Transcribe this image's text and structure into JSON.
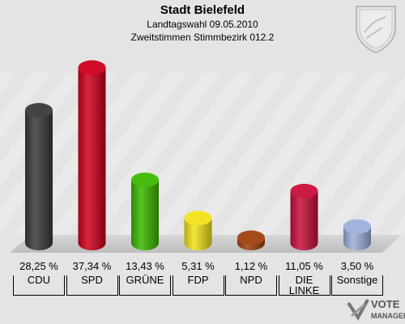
{
  "header": {
    "title": "Stadt Bielefeld",
    "subtitle": "Landtagswahl 09.05.2010",
    "subtitle2": "Zweitstimmen Stimmbezirk 012.2"
  },
  "logo": {
    "line1": "VOTE",
    "line2": "MANAGER"
  },
  "chart_data": {
    "type": "bar",
    "title": "Stadt Bielefeld",
    "categories": [
      "CDU",
      "SPD",
      "GRÜNE",
      "FDP",
      "NPD",
      "DIE LINKE",
      "Sonstige"
    ],
    "values": [
      28.25,
      37.34,
      13.43,
      5.31,
      1.12,
      11.05,
      3.5
    ],
    "value_labels": [
      "28,25 %",
      "37,34 %",
      "13,43 %",
      "5,31 %",
      "1,12 %",
      "11,05 %",
      "3,50 %"
    ],
    "colors": [
      "#3a3a3a",
      "#d0001c",
      "#3cb800",
      "#f2e11a",
      "#a0400e",
      "#c8103a",
      "#9fafdc"
    ],
    "ylim": [
      0,
      40
    ]
  }
}
